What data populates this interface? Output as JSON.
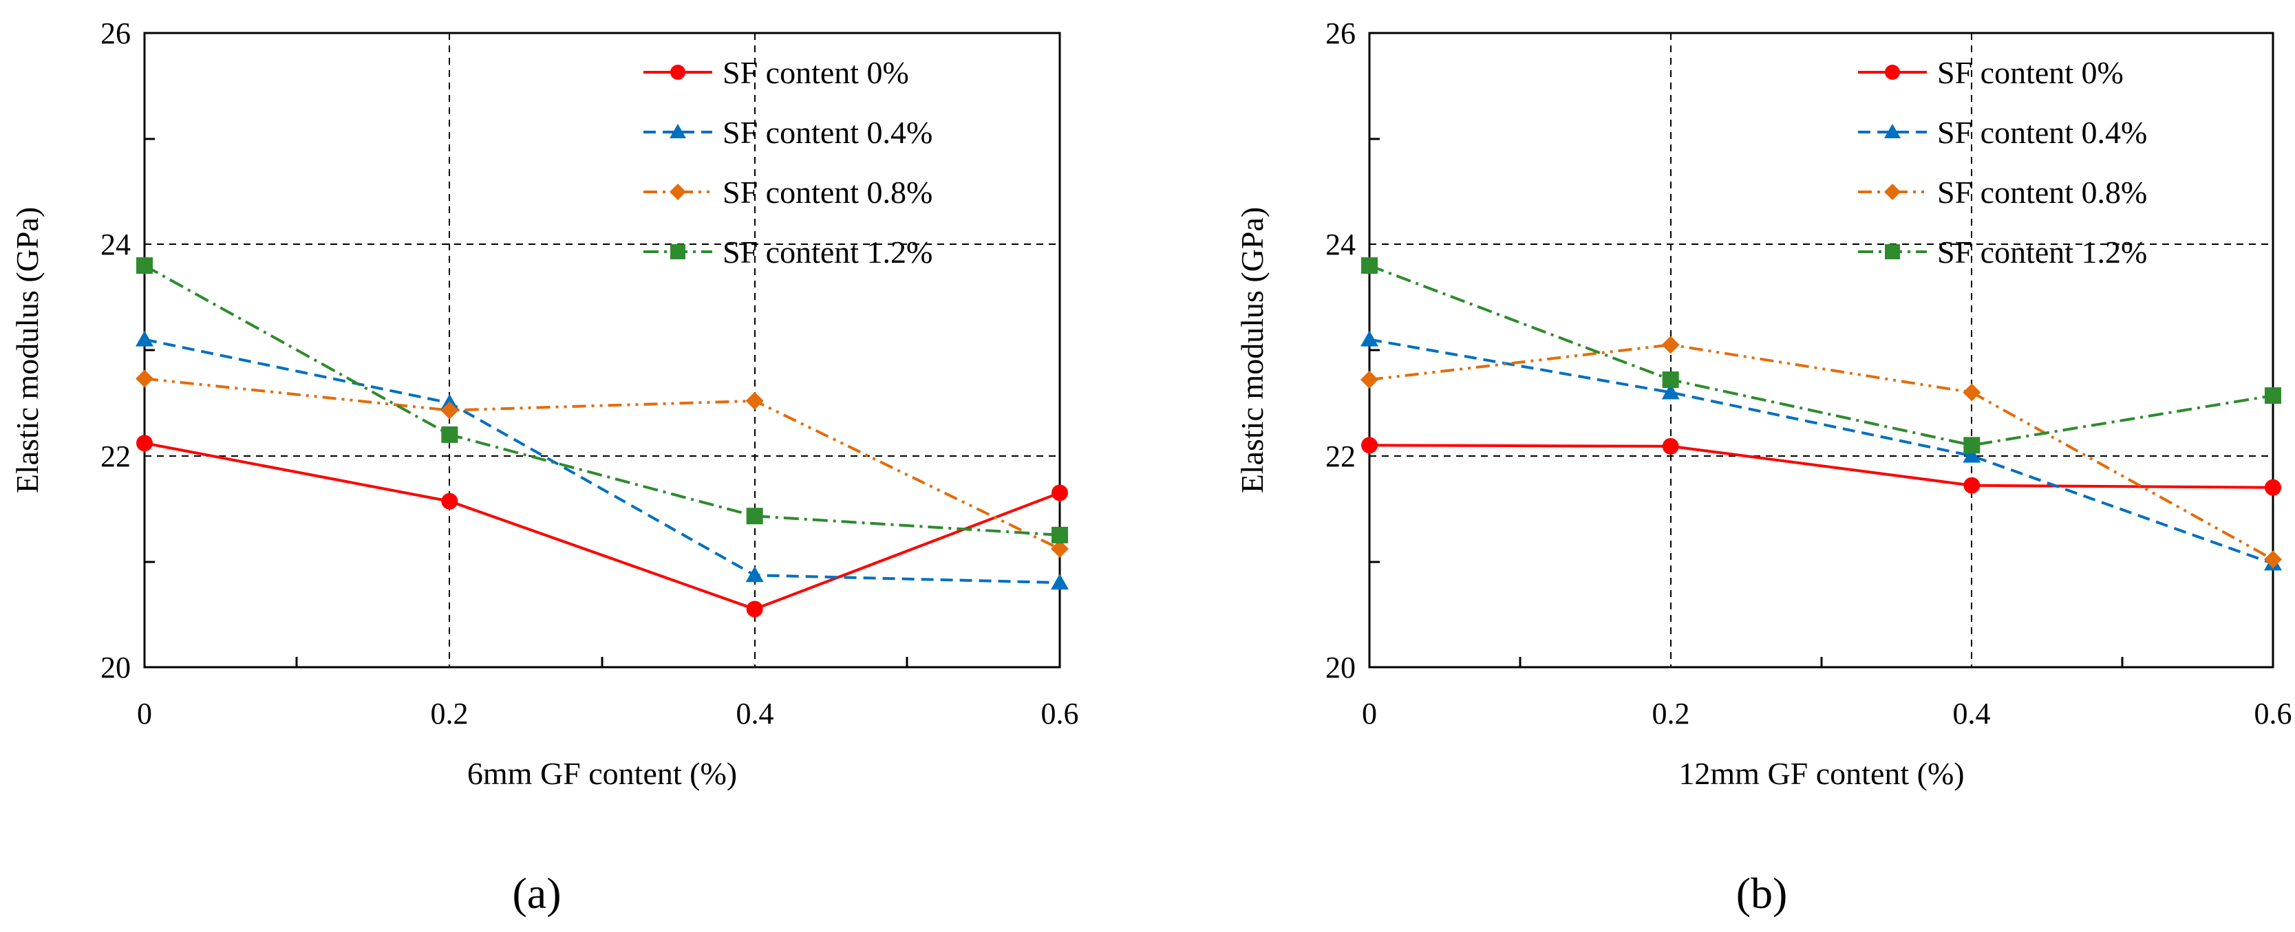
{
  "chart_data": [
    {
      "type": "line",
      "panel_label": "(a)",
      "xlabel": "6mm GF content (%)",
      "ylabel": "Elastic modulus (GPa)",
      "x": [
        0,
        0.2,
        0.4,
        0.6
      ],
      "xticks": [
        "0",
        "0.2",
        "0.4",
        "0.6"
      ],
      "yticks": [
        "20",
        "22",
        "24",
        "26"
      ],
      "xlim": [
        0,
        0.6
      ],
      "ylim": [
        20,
        26
      ],
      "legend_position": "top-right",
      "series": [
        {
          "name": "SF content 0%",
          "color": "#ff0000",
          "marker": "circle",
          "dash": "solid",
          "values": [
            22.12,
            21.57,
            20.55,
            21.65
          ]
        },
        {
          "name": "SF content 0.4%",
          "color": "#0070c0",
          "marker": "triangle",
          "dash": "dash",
          "values": [
            23.1,
            22.5,
            20.87,
            20.8
          ]
        },
        {
          "name": "SF content 0.8%",
          "color": "#e46c0a",
          "marker": "diamond",
          "dash": "dashdotdot",
          "values": [
            22.73,
            22.43,
            22.52,
            21.12
          ]
        },
        {
          "name": "SF content 1.2%",
          "color": "#2e8b2e",
          "marker": "square",
          "dash": "dashdot",
          "values": [
            23.8,
            22.2,
            21.43,
            21.25
          ]
        }
      ]
    },
    {
      "type": "line",
      "panel_label": "(b)",
      "xlabel": "12mm GF content (%)",
      "ylabel": "Elastic modulus (GPa)",
      "x": [
        0,
        0.2,
        0.4,
        0.6
      ],
      "xticks": [
        "0",
        "0.2",
        "0.4",
        "0.6"
      ],
      "yticks": [
        "20",
        "22",
        "24",
        "26"
      ],
      "xlim": [
        0,
        0.6
      ],
      "ylim": [
        20,
        26
      ],
      "legend_position": "top-right",
      "series": [
        {
          "name": "SF content 0%",
          "color": "#ff0000",
          "marker": "circle",
          "dash": "solid",
          "values": [
            22.1,
            22.09,
            21.72,
            21.7
          ]
        },
        {
          "name": "SF content 0.4%",
          "color": "#0070c0",
          "marker": "triangle",
          "dash": "dash",
          "values": [
            23.1,
            22.6,
            22.0,
            20.98
          ]
        },
        {
          "name": "SF content 0.8%",
          "color": "#e46c0a",
          "marker": "diamond",
          "dash": "dashdotdot",
          "values": [
            22.72,
            23.05,
            22.6,
            21.02
          ]
        },
        {
          "name": "SF content 1.2%",
          "color": "#2e8b2e",
          "marker": "square",
          "dash": "dashdot",
          "values": [
            23.8,
            22.72,
            22.1,
            22.57
          ]
        }
      ]
    }
  ]
}
